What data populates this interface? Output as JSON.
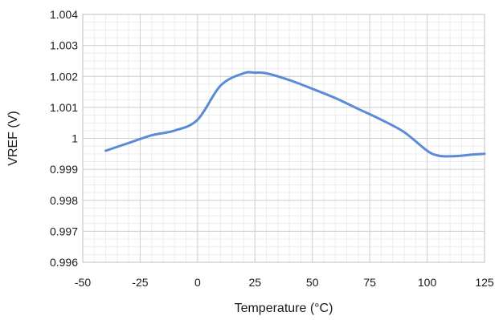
{
  "chart_data": {
    "type": "line",
    "xlabel": "Temperature (°C)",
    "ylabel": "VREF (V)",
    "xlim": [
      -50,
      125
    ],
    "ylim": [
      0.996,
      1.004
    ],
    "x_ticks": [
      -50,
      -25,
      0,
      25,
      50,
      75,
      100,
      125
    ],
    "x_tick_labels": [
      "-50",
      "-25",
      "0",
      "25",
      "50",
      "75",
      "100",
      "125"
    ],
    "y_ticks": [
      0.996,
      0.997,
      0.998,
      0.999,
      1.0,
      1.001,
      1.002,
      1.003,
      1.004
    ],
    "y_tick_labels": [
      "0.996",
      "0.997",
      "0.998",
      "0.999",
      "1",
      "1.001",
      "1.002",
      "1.003",
      "1.004"
    ],
    "grid": true,
    "legend": "none",
    "series": [
      {
        "color": "#5b8ad6",
        "x": [
          -40,
          -30,
          -20,
          -10,
          0,
          10,
          20,
          25,
          30,
          40,
          50,
          60,
          70,
          80,
          90,
          100,
          105,
          110,
          115,
          120,
          125
        ],
        "y": [
          0.9996,
          0.99985,
          1.0001,
          1.00025,
          1.0006,
          1.0017,
          1.0021,
          1.00212,
          1.0021,
          1.00188,
          1.0016,
          1.0013,
          1.00095,
          1.0006,
          1.0002,
          0.9996,
          0.99944,
          0.99942,
          0.99944,
          0.99948,
          0.9995
        ]
      }
    ]
  }
}
